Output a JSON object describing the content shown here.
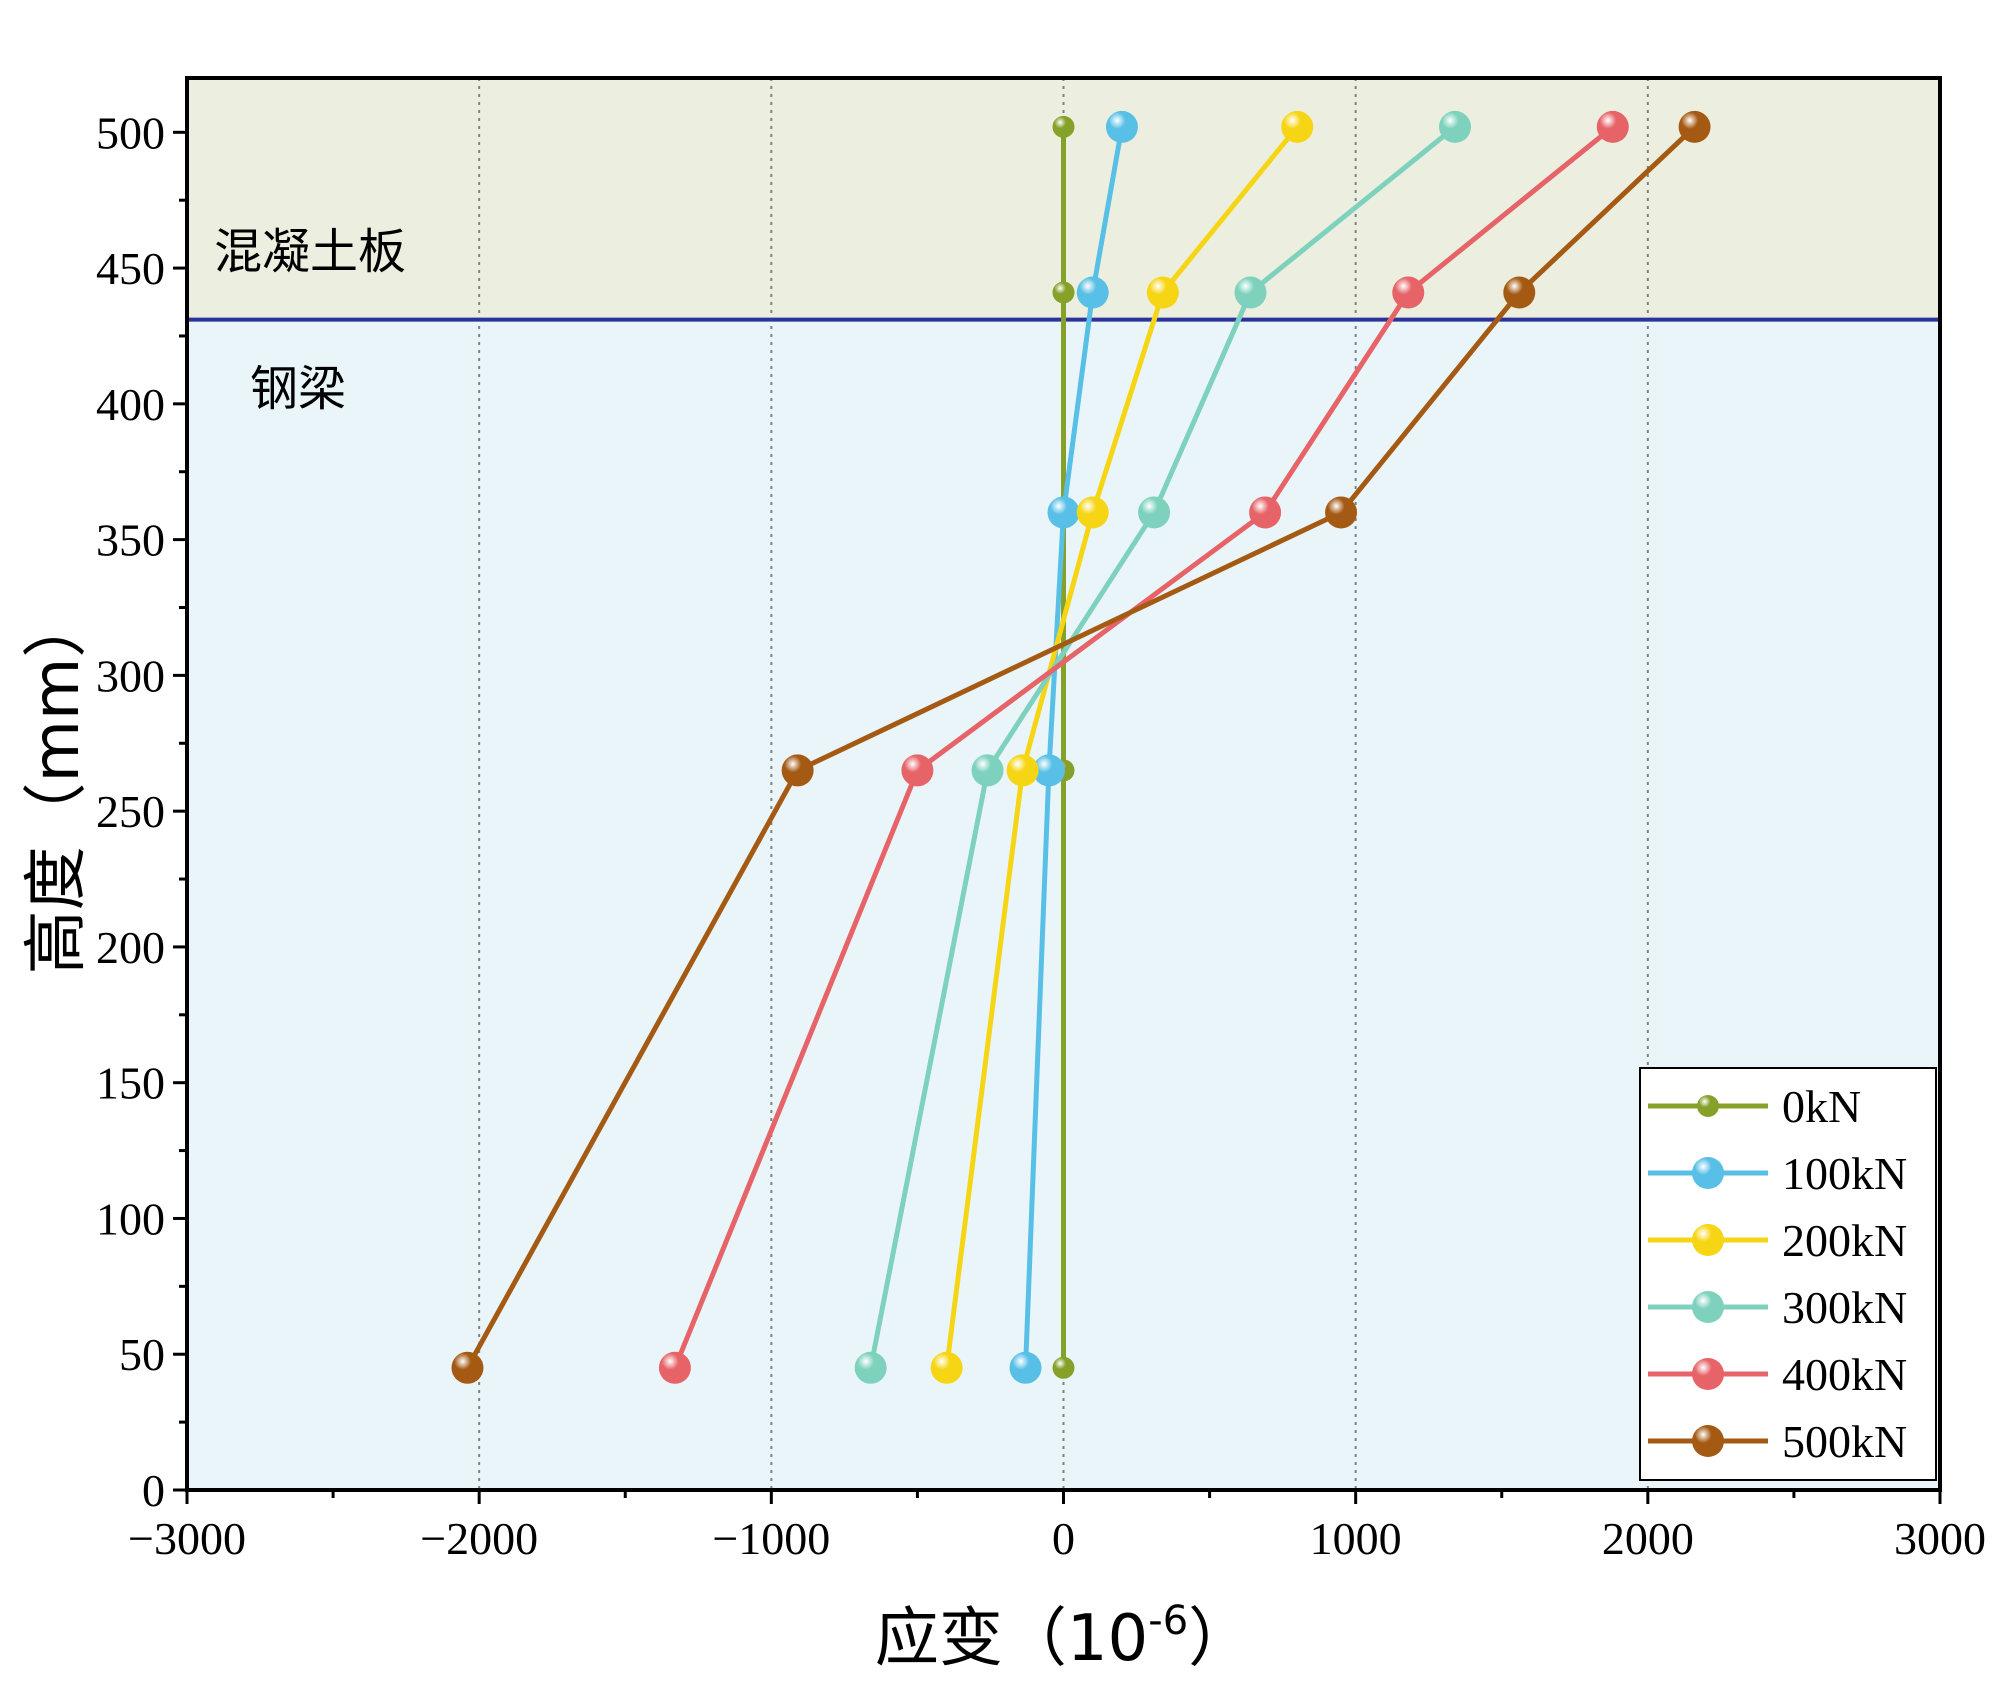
{
  "chart_data": {
    "type": "line",
    "xlabel": "应变（10",
    "xlabel_sup": "-6",
    "xlabel_close": "）",
    "ylabel": "高度（mm）",
    "xlim": [
      -3000,
      3000
    ],
    "ylim": [
      0,
      520
    ],
    "xticks": [
      -3000,
      -2000,
      -1000,
      0,
      1000,
      2000,
      3000
    ],
    "xtick_labels": [
      "−3000",
      "−2000",
      "−1000",
      "0",
      "1000",
      "2000",
      "3000"
    ],
    "yticks": [
      0,
      50,
      100,
      150,
      200,
      250,
      300,
      350,
      400,
      450,
      500
    ],
    "ytick_labels": [
      "0",
      "50",
      "100",
      "150",
      "200",
      "250",
      "300",
      "350",
      "400",
      "450",
      "500"
    ],
    "grid": "vertical dotted at major x ticks",
    "legend_position": "bottom-right",
    "regions": [
      {
        "label": "混凝土板",
        "y_range": [
          431,
          520
        ],
        "color": "#ecefdf"
      },
      {
        "label": "钢梁",
        "y_range": [
          0,
          431
        ],
        "color": "#eaf5f9"
      }
    ],
    "interface": {
      "y": 431,
      "color": "#2a3399"
    },
    "series": [
      {
        "name": "0kN",
        "color": "#86a12a",
        "x": [
          0,
          0,
          0,
          0,
          0
        ],
        "y": [
          45,
          265,
          360,
          441,
          502
        ]
      },
      {
        "name": "100kN",
        "color": "#58bfe6",
        "x": [
          -130,
          -50,
          0,
          100,
          200
        ],
        "y": [
          45,
          265,
          360,
          441,
          502
        ]
      },
      {
        "name": "200kN",
        "color": "#f6d514",
        "x": [
          -400,
          -140,
          100,
          340,
          800
        ],
        "y": [
          45,
          265,
          360,
          441,
          502
        ]
      },
      {
        "name": "300kN",
        "color": "#7dd1bd",
        "x": [
          -660,
          -260,
          310,
          640,
          1340
        ],
        "y": [
          45,
          265,
          360,
          441,
          502
        ]
      },
      {
        "name": "400kN",
        "color": "#e66368",
        "x": [
          -1330,
          -500,
          690,
          1180,
          1880
        ],
        "y": [
          45,
          265,
          360,
          441,
          502
        ]
      },
      {
        "name": "500kN",
        "color": "#a55a14",
        "x": [
          -2040,
          -910,
          950,
          1560,
          2160
        ],
        "y": [
          45,
          265,
          360,
          441,
          502
        ]
      }
    ]
  }
}
